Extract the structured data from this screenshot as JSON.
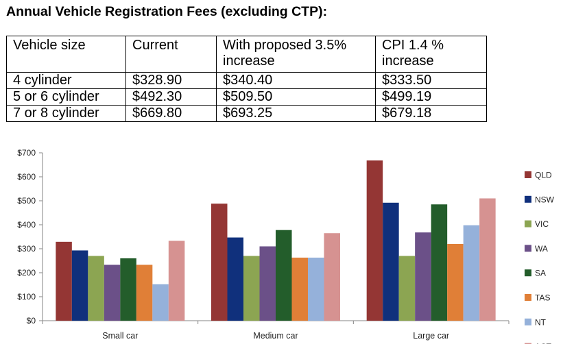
{
  "title": "Annual Vehicle Registration Fees (excluding CTP):",
  "table": {
    "headers": [
      "Vehicle size",
      "Current",
      "With proposed 3.5% increase",
      "CPI 1.4 % increase"
    ],
    "rows": [
      [
        "4 cylinder",
        "$328.90",
        "$340.40",
        "$333.50"
      ],
      [
        "5 or 6 cylinder",
        "$492.30",
        "$509.50",
        "$499.19"
      ],
      [
        "7 or 8 cylinder",
        "$669.80",
        "$693.25",
        "$679.18"
      ]
    ]
  },
  "chart_data": {
    "type": "bar",
    "title": "",
    "xlabel": "",
    "ylabel": "",
    "ylim": [
      0,
      700
    ],
    "yticks": [
      "$0",
      "$100",
      "$200",
      "$300",
      "$400",
      "$500",
      "$600",
      "$700"
    ],
    "grid": false,
    "legend_position": "right",
    "categories": [
      "Small car",
      "Medium car",
      "Large car"
    ],
    "series": [
      {
        "name": "QLD",
        "color": "#943634",
        "values": [
          329,
          488,
          668
        ]
      },
      {
        "name": "NSW",
        "color": "#10307c",
        "values": [
          293,
          347,
          492
        ]
      },
      {
        "name": "VIC",
        "color": "#8ca552",
        "values": [
          270,
          270,
          270
        ]
      },
      {
        "name": "WA",
        "color": "#6b5088",
        "values": [
          233,
          310,
          368
        ]
      },
      {
        "name": "SA",
        "color": "#235d2b",
        "values": [
          260,
          378,
          485
        ]
      },
      {
        "name": "TAS",
        "color": "#e07f37",
        "values": [
          233,
          263,
          320
        ]
      },
      {
        "name": "NT",
        "color": "#95b1da",
        "values": [
          152,
          263,
          398
        ]
      },
      {
        "name": "ACT",
        "color": "#d69291",
        "values": [
          333,
          365,
          510
        ]
      }
    ]
  }
}
